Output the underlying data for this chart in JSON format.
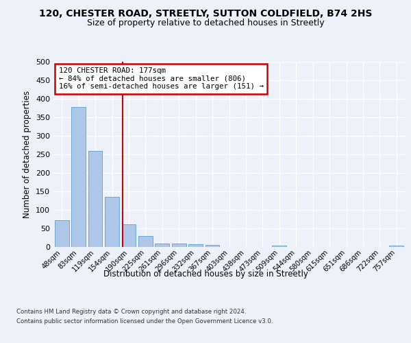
{
  "title": "120, CHESTER ROAD, STREETLY, SUTTON COLDFIELD, B74 2HS",
  "subtitle": "Size of property relative to detached houses in Streetly",
  "xlabel": "Distribution of detached houses by size in Streetly",
  "ylabel": "Number of detached properties",
  "bar_labels": [
    "48sqm",
    "83sqm",
    "119sqm",
    "154sqm",
    "190sqm",
    "225sqm",
    "261sqm",
    "296sqm",
    "332sqm",
    "367sqm",
    "403sqm",
    "438sqm",
    "473sqm",
    "509sqm",
    "544sqm",
    "580sqm",
    "615sqm",
    "651sqm",
    "686sqm",
    "722sqm",
    "757sqm"
  ],
  "bar_values": [
    73,
    377,
    259,
    136,
    62,
    30,
    10,
    10,
    8,
    5,
    0,
    0,
    0,
    3,
    0,
    0,
    0,
    0,
    0,
    0,
    3
  ],
  "bar_color": "#aec6e8",
  "bar_edge_color": "#5a9fd4",
  "ylim": [
    0,
    500
  ],
  "yticks": [
    0,
    50,
    100,
    150,
    200,
    250,
    300,
    350,
    400,
    450,
    500
  ],
  "property_label": "120 CHESTER ROAD: 177sqm",
  "annotation_line1": "← 84% of detached houses are smaller (806)",
  "annotation_line2": "16% of semi-detached houses are larger (151) →",
  "vline_x_index": 3.65,
  "annotation_box_color": "#ffffff",
  "annotation_box_edge": "#cc0000",
  "vline_color": "#cc0000",
  "background_color": "#edf2fa",
  "grid_color": "#ffffff",
  "footer_line1": "Contains HM Land Registry data © Crown copyright and database right 2024.",
  "footer_line2": "Contains public sector information licensed under the Open Government Licence v3.0."
}
